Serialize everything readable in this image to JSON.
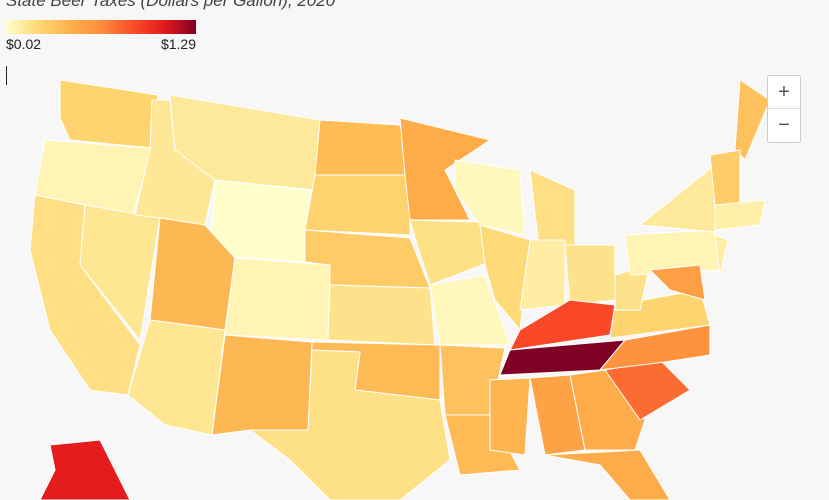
{
  "chart_data": {
    "type": "choropleth",
    "title": "State Beer Taxes (Dollars per Gallon), 2020",
    "legend": {
      "min": {
        "value": 0.02,
        "label": "$0.02"
      },
      "max": {
        "value": 1.29,
        "label": "$1.29"
      }
    },
    "colors": [
      "#ffffcc",
      "#fed976",
      "#feb24c",
      "#fd8d3c",
      "#fc4e2a",
      "#e31a1c",
      "#800026"
    ],
    "values": [
      0.26,
      0.08,
      0.2,
      0.16,
      0.15,
      0.14,
      0.02,
      0.41,
      0.16,
      0.08,
      0.41,
      0.39,
      0.27,
      0.31,
      0.18,
      0.4,
      0.19,
      0.48,
      0.19,
      0.06,
      0.36,
      0.4,
      0.06,
      0.23,
      0.2,
      0.12,
      0.18,
      0.89,
      1.29,
      0.43,
      0.53,
      0.48,
      0.48,
      0.77,
      0.62,
      0.26,
      0.18,
      0.08,
      0.14,
      0.36,
      0.3,
      0.11,
      0.12,
      0.55,
      1.07
    ]
  },
  "zoom": {
    "in": "+",
    "out": "−"
  }
}
